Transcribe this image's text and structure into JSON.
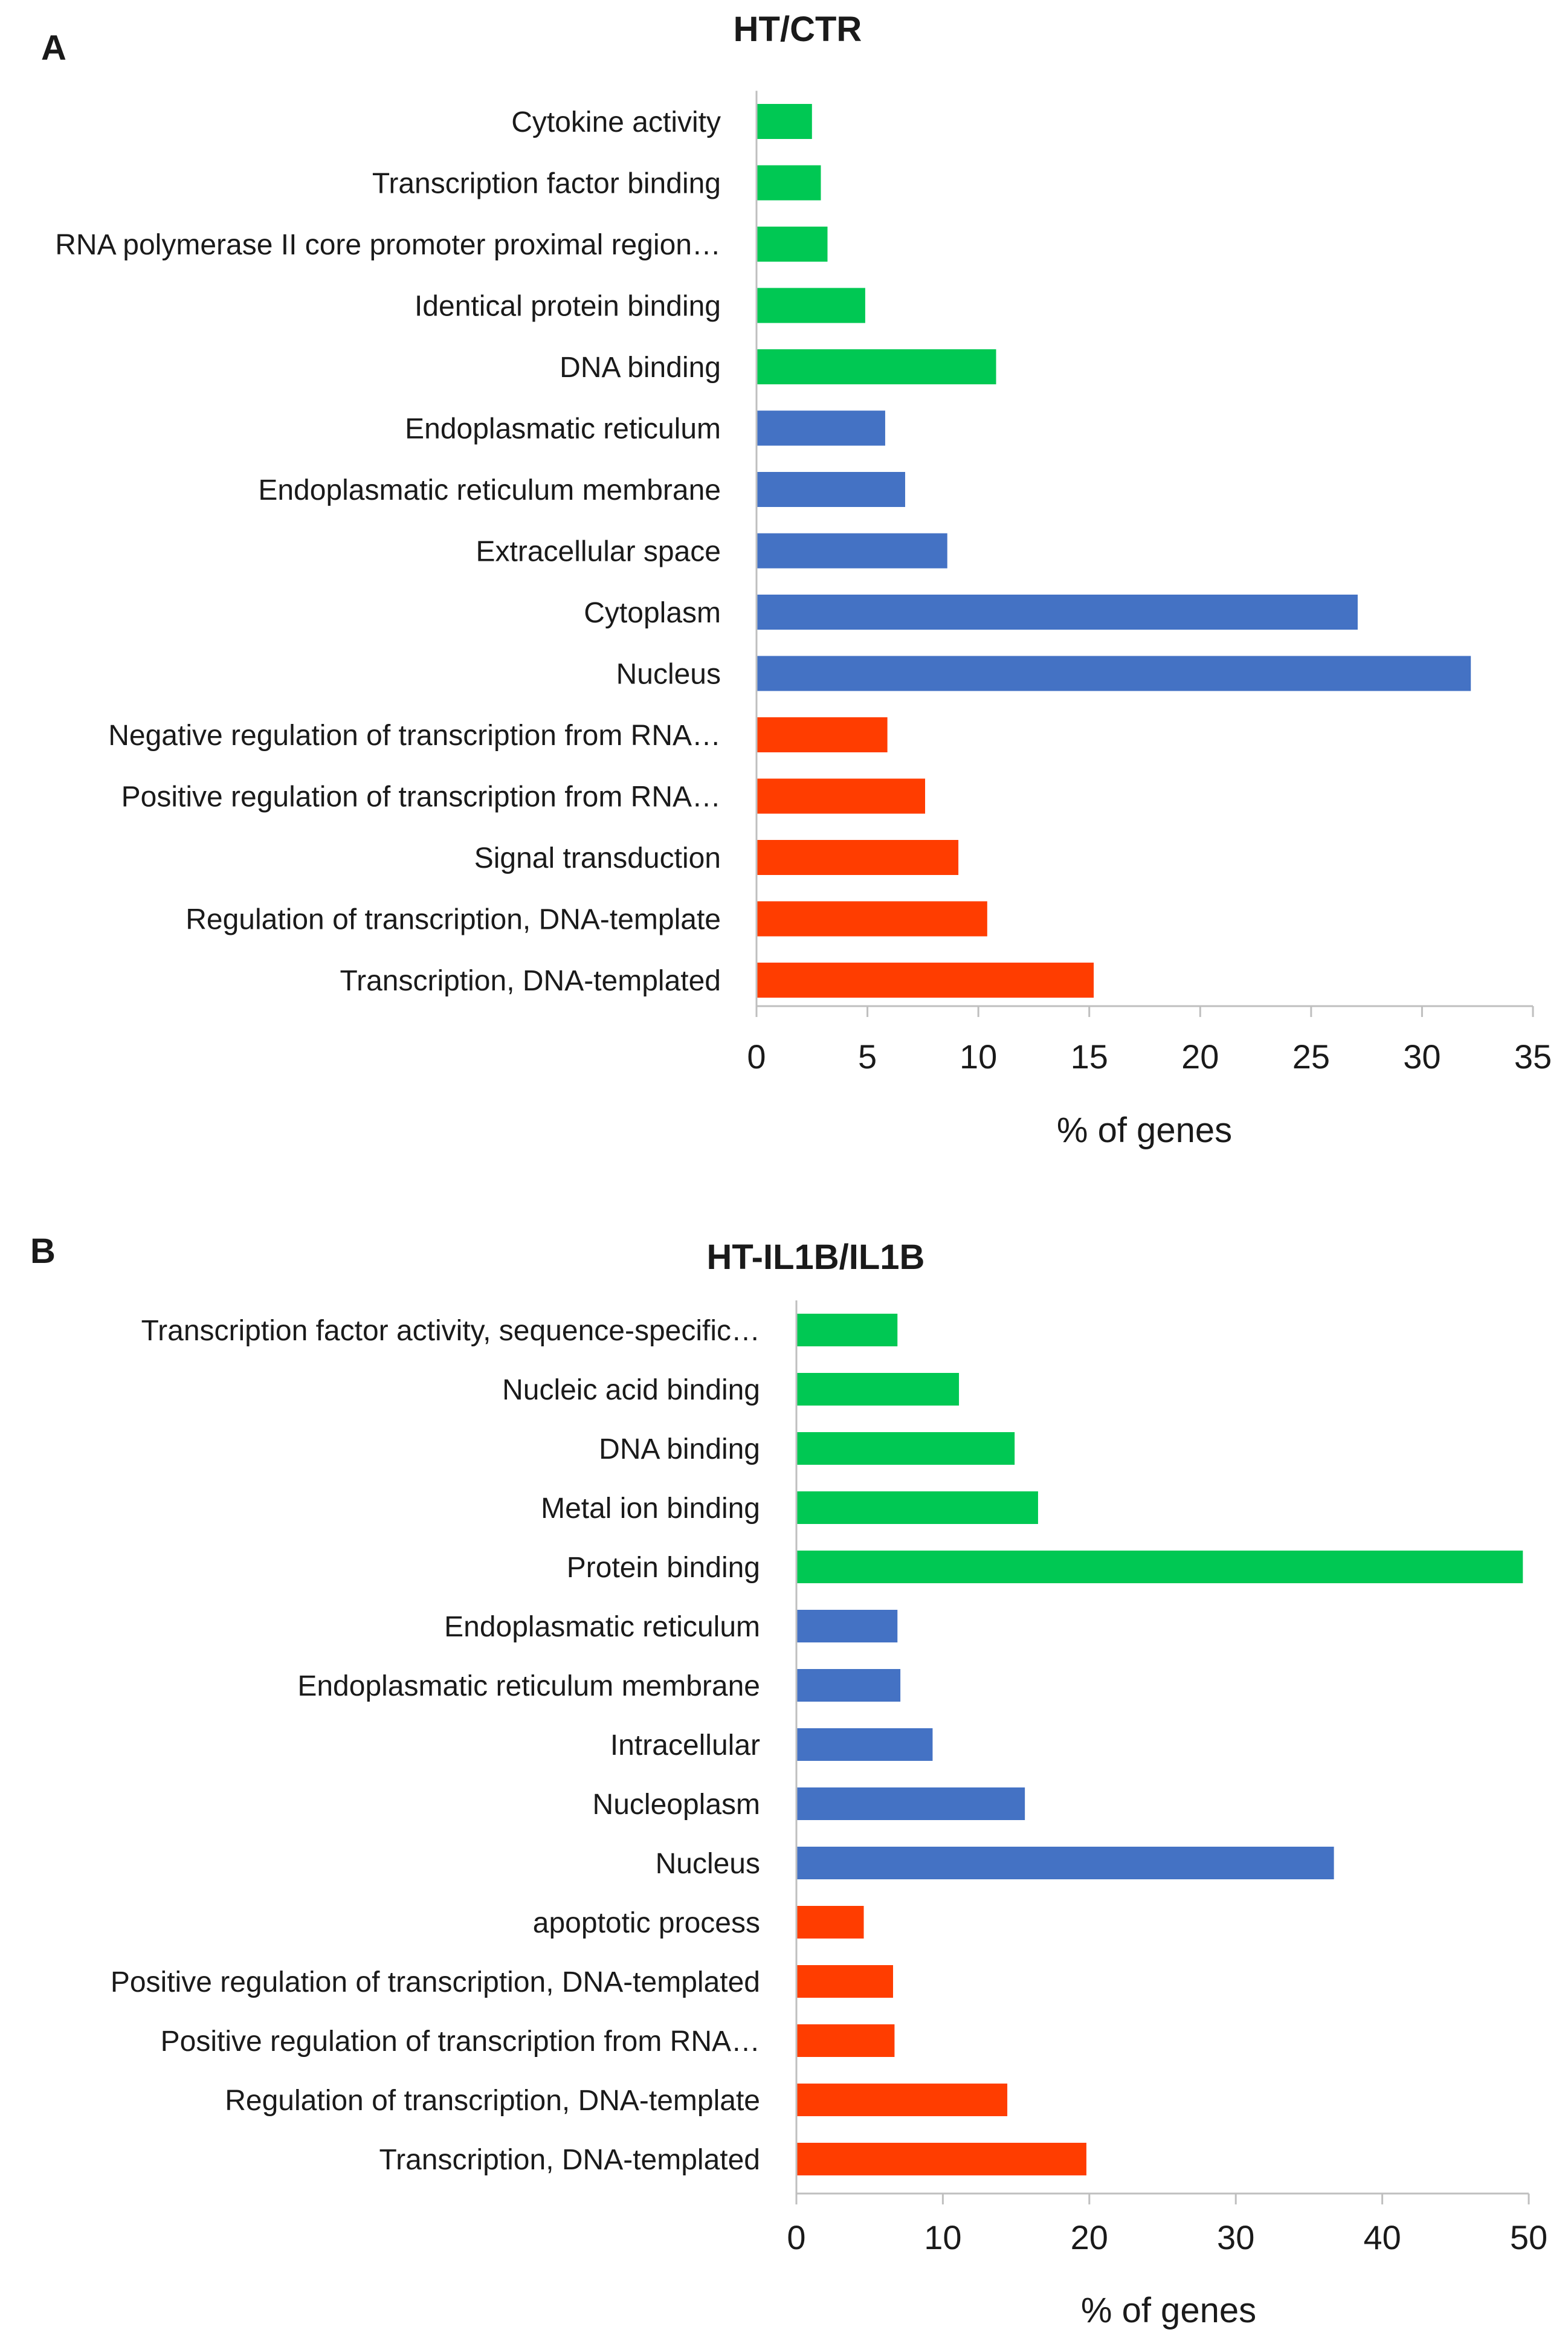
{
  "colors": {
    "molecular_function": "#00c853",
    "cellular_component": "#4472c4",
    "biological_process": "#ff3d00",
    "axis": "#bfbfbf",
    "text": "#1a1a1a"
  },
  "chart_data": [
    {
      "panel": "A",
      "type": "bar",
      "orientation": "horizontal",
      "title": "HT/CTR",
      "xlabel": "% of genes",
      "ylabel": "",
      "xlim": [
        0,
        35
      ],
      "xticks": [
        "0",
        "5",
        "10",
        "15",
        "20",
        "25",
        "30",
        "35"
      ],
      "grid": false,
      "categories": [
        "Cytokine activity",
        "Transcription factor binding",
        "RNA polymerase II core promoter proximal region…",
        "Identical protein binding",
        "DNA binding",
        "Endoplasmatic reticulum",
        "Endoplasmatic reticulum membrane",
        "Extracellular space",
        "Cytoplasm",
        "Nucleus",
        "Negative regulation of transcription from RNA…",
        "Positive regulation of transcription from RNA…",
        "Signal transduction",
        "Regulation of transcription, DNA-template",
        "Transcription, DNA-templated"
      ],
      "values": [
        2.5,
        2.9,
        3.2,
        4.9,
        10.8,
        5.8,
        6.7,
        8.6,
        27.1,
        32.2,
        5.9,
        7.6,
        9.1,
        10.4,
        15.2
      ],
      "groups": [
        "molecular_function",
        "molecular_function",
        "molecular_function",
        "molecular_function",
        "molecular_function",
        "cellular_component",
        "cellular_component",
        "cellular_component",
        "cellular_component",
        "cellular_component",
        "biological_process",
        "biological_process",
        "biological_process",
        "biological_process",
        "biological_process"
      ]
    },
    {
      "panel": "B",
      "type": "bar",
      "orientation": "horizontal",
      "title": "HT-IL1B/IL1B",
      "xlabel": "% of genes",
      "ylabel": "",
      "xlim": [
        0,
        50
      ],
      "xticks": [
        "0",
        "10",
        "20",
        "30",
        "40",
        "50"
      ],
      "grid": false,
      "categories": [
        "Transcription factor activity, sequence-specific…",
        "Nucleic acid binding",
        "DNA binding",
        "Metal ion binding",
        "Protein binding",
        "Endoplasmatic reticulum",
        "Endoplasmatic reticulum membrane",
        "Intracellular",
        "Nucleoplasm",
        "Nucleus",
        "apoptotic process",
        "Positive regulation of transcription, DNA-templated",
        "Positive regulation of transcription from RNA…",
        "Regulation of transcription, DNA-template",
        "Transcription, DNA-templated"
      ],
      "values": [
        6.9,
        11.1,
        14.9,
        16.5,
        49.6,
        6.9,
        7.1,
        9.3,
        15.6,
        36.7,
        4.6,
        6.6,
        6.7,
        14.4,
        19.8
      ],
      "groups": [
        "molecular_function",
        "molecular_function",
        "molecular_function",
        "molecular_function",
        "molecular_function",
        "cellular_component",
        "cellular_component",
        "cellular_component",
        "cellular_component",
        "cellular_component",
        "biological_process",
        "biological_process",
        "biological_process",
        "biological_process",
        "biological_process"
      ]
    }
  ]
}
